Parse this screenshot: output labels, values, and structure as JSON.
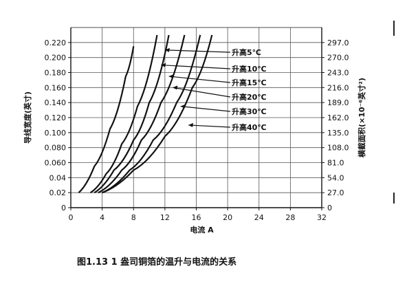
{
  "caption": "图1.13  1 盎司铜箔的温升与电流的关系",
  "chart_data": {
    "type": "line",
    "xlabel": "电流 A",
    "ylabel_left": "导线宽度(英寸)",
    "ylabel_right": "横截面积(×10⁻⁶英寸²)",
    "xlim": [
      0,
      32
    ],
    "ylim": [
      0,
      0.24
    ],
    "ylim_right": [
      0,
      324
    ],
    "x_ticks": [
      "0",
      "4",
      "8",
      "12",
      "16",
      "20",
      "24",
      "28",
      "32"
    ],
    "y_ticks_left": [
      "0",
      "0.02",
      "0.04",
      "0.060",
      "0.080",
      "0.100",
      "0.120",
      "0.140",
      "0.160",
      "0.180",
      "0.200",
      "0.220"
    ],
    "y_ticks_right": [
      "0",
      "27.0",
      "54.0",
      "81.0",
      "108.0",
      "135.0",
      "162.0",
      "189.0",
      "216.0",
      "243.0",
      "270.0",
      "297.0"
    ],
    "grid": true,
    "series": [
      {
        "name": "升高5℃",
        "x": [
          1.0,
          3.0,
          5.0,
          7.0,
          8.0
        ],
        "y": [
          0.02,
          0.055,
          0.105,
          0.175,
          0.215
        ]
      },
      {
        "name": "升高10℃",
        "x": [
          2.5,
          4.5,
          6.5,
          8.5,
          11.0
        ],
        "y": [
          0.02,
          0.045,
          0.085,
          0.135,
          0.23
        ]
      },
      {
        "name": "升高15℃",
        "x": [
          3.0,
          5.5,
          8.0,
          10.0,
          12.5
        ],
        "y": [
          0.02,
          0.05,
          0.09,
          0.14,
          0.23
        ]
      },
      {
        "name": "升高20℃",
        "x": [
          3.5,
          6.5,
          9.0,
          11.5,
          14.5
        ],
        "y": [
          0.02,
          0.05,
          0.09,
          0.14,
          0.23
        ]
      },
      {
        "name": "升高30℃",
        "x": [
          4.0,
          7.5,
          10.5,
          13.5,
          16.5
        ],
        "y": [
          0.02,
          0.05,
          0.09,
          0.14,
          0.23
        ]
      },
      {
        "name": "升高40℃",
        "x": [
          4.0,
          8.0,
          12.0,
          15.5,
          18.0
        ],
        "y": [
          0.02,
          0.05,
          0.095,
          0.16,
          0.23
        ]
      }
    ]
  }
}
